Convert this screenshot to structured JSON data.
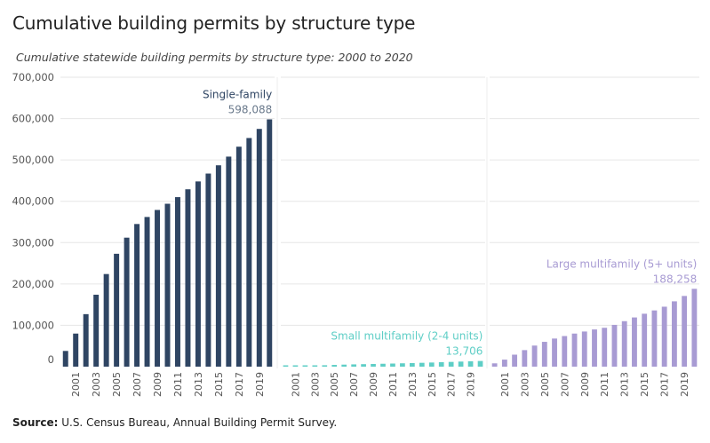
{
  "title": "Cumulative building permits by structure type",
  "subtitle": "Cumulative statewide building permits by structure type: 2000 to 2020",
  "source_label": "Source:",
  "source_text": " U.S. Census Bureau, Annual Building Permit Survey.",
  "colors": {
    "single": "#2f4563",
    "small": "#5ecec6",
    "large": "#a89bd3",
    "grid": "#e6e6e6"
  },
  "chart_data": {
    "type": "bar",
    "title": "Cumulative building permits by structure type",
    "subtitle": "Cumulative statewide building permits by structure type: 2000 to 2020",
    "y_ticks": [
      "700,000",
      "600,000",
      "500,000",
      "400,000",
      "300,000",
      "200,000",
      "100,000",
      "0"
    ],
    "y_tick_values": [
      700000,
      600000,
      500000,
      400000,
      300000,
      200000,
      100000,
      0
    ],
    "ylim": [
      0,
      700000
    ],
    "grid": true,
    "x_tick_labels": [
      "2001",
      "2003",
      "2005",
      "2007",
      "2009",
      "2011",
      "2013",
      "2015",
      "2017",
      "2019"
    ],
    "categories": [
      "2000",
      "2001",
      "2002",
      "2003",
      "2004",
      "2005",
      "2006",
      "2007",
      "2008",
      "2009",
      "2010",
      "2011",
      "2012",
      "2013",
      "2014",
      "2015",
      "2016",
      "2017",
      "2018",
      "2019",
      "2020"
    ],
    "series": [
      {
        "name": "Single-family",
        "final_label": "598,088",
        "values": [
          38000,
          80000,
          127000,
          174000,
          224000,
          273000,
          312000,
          345000,
          362000,
          379000,
          394000,
          410000,
          429000,
          448000,
          467000,
          487000,
          508000,
          532000,
          553000,
          575000,
          598088
        ]
      },
      {
        "name": "Small multifamily (2-4 units)",
        "final_label": "13,706",
        "values": [
          600,
          1300,
          2000,
          2700,
          3400,
          4200,
          4900,
          5500,
          6000,
          6500,
          7000,
          7500,
          8100,
          8700,
          9300,
          10000,
          10800,
          11500,
          12300,
          13000,
          13706
        ]
      },
      {
        "name": "Large multifamily (5+ units)",
        "final_label": "188,258",
        "values": [
          8000,
          17000,
          29000,
          40000,
          51000,
          60000,
          68000,
          74000,
          80000,
          85000,
          90000,
          94000,
          101000,
          110000,
          119000,
          128000,
          136000,
          145000,
          158000,
          171000,
          188258
        ]
      }
    ]
  }
}
